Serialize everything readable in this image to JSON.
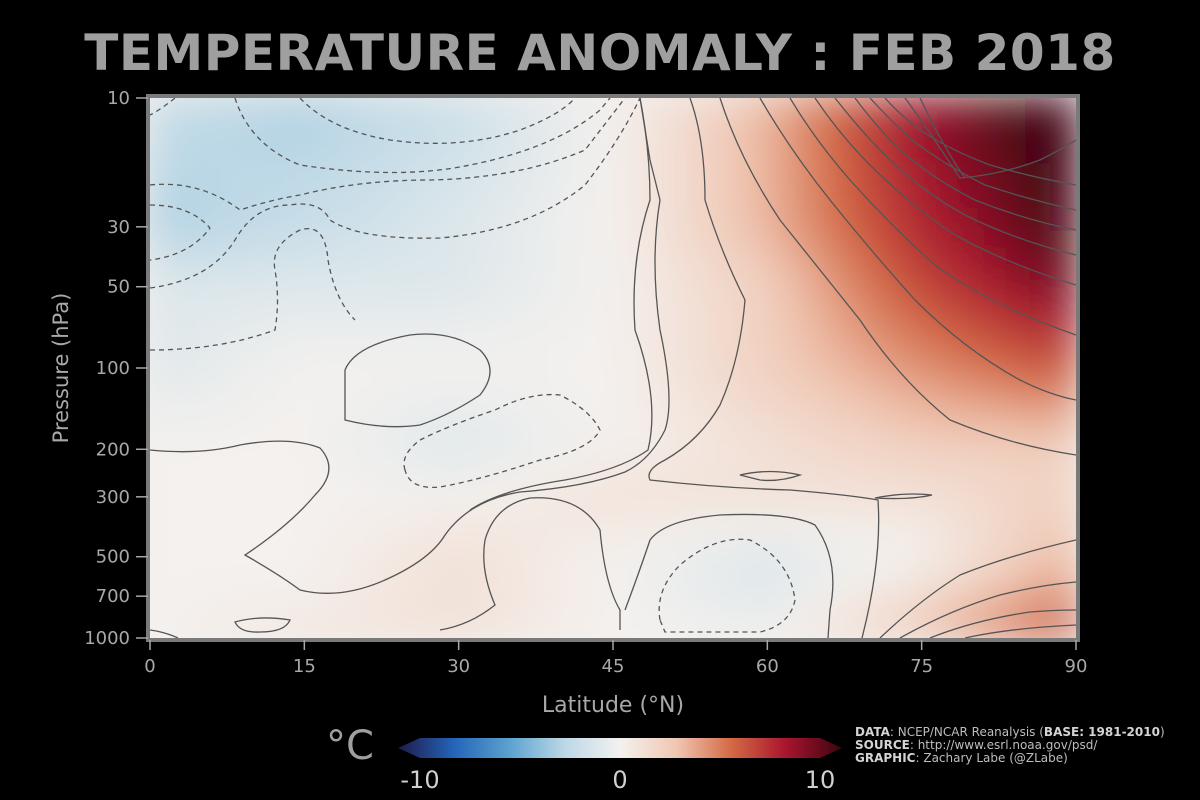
{
  "chart_data": {
    "type": "heatmap",
    "subtype": "filled-contour",
    "title": "TEMPERATURE ANOMALY : FEB 2018",
    "xlabel": "Latitude (°N)",
    "ylabel": "Pressure (hPa)",
    "xlim": [
      0,
      90
    ],
    "ylim": [
      1000,
      10
    ],
    "y_scale": "log",
    "x_ticks": [
      "0",
      "15",
      "30",
      "45",
      "60",
      "75",
      "90"
    ],
    "y_ticks": [
      "10",
      "30",
      "50",
      "100",
      "200",
      "300",
      "500",
      "700",
      "1000"
    ],
    "grid": false,
    "colormap": "diverging blue-white-red",
    "colorbar": {
      "unit": "°C",
      "min": -10,
      "max": 10,
      "ticks": [
        "-10",
        "0",
        "10"
      ],
      "colors": [
        "#1e1a4a",
        "#2464b8",
        "#5aa2cf",
        "#bcd8e6",
        "#f4f1ee",
        "#f0c8b4",
        "#d46a44",
        "#a8142e",
        "#3c0510"
      ]
    },
    "contours": "solid = positive, dashed = negative, 1 °C interval",
    "approx_field": {
      "latitude": [
        0,
        15,
        30,
        45,
        60,
        75,
        90
      ],
      "pressure_hPa": [
        10,
        30,
        50,
        100,
        200,
        300,
        500,
        700,
        1000
      ],
      "anomaly_C": [
        [
          -2,
          -3,
          -2,
          0,
          3,
          8,
          11
        ],
        [
          -3,
          -2,
          -1,
          0,
          3,
          7,
          10
        ],
        [
          -1,
          -1,
          -1,
          0,
          2,
          6,
          9
        ],
        [
          -1,
          0,
          0,
          0,
          2,
          4,
          6
        ],
        [
          0,
          0,
          -1,
          0,
          1,
          2,
          2
        ],
        [
          0,
          0,
          0,
          1,
          1,
          1,
          2
        ],
        [
          0,
          0,
          1,
          0,
          -1,
          0,
          3
        ],
        [
          0,
          0,
          1,
          0,
          -1,
          1,
          4
        ],
        [
          0,
          1,
          1,
          0,
          0,
          3,
          7
        ]
      ]
    }
  },
  "credits": {
    "data_label": "DATA",
    "data_text": ": NCEP/NCAR Reanalysis (",
    "base_label": "BASE: 1981-2010",
    "data_close": ")",
    "source_label": "SOURCE",
    "source_text": ": http://www.esrl.noaa.gov/psd/",
    "graphic_label": "GRAPHIC",
    "graphic_text": ": Zachary Labe (@ZLabe)"
  },
  "colors": {
    "frame": "#7a7a7a",
    "text": "#a8a8a8",
    "contour": "#555555"
  }
}
